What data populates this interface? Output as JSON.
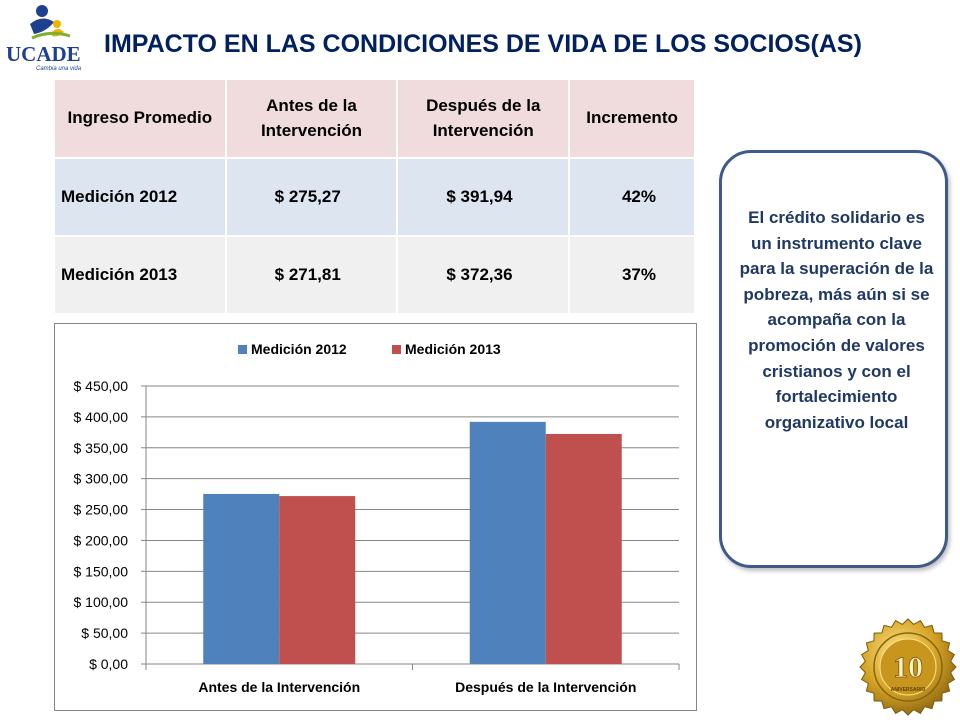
{
  "logo": {
    "name": "UCADE",
    "tagline": "Cambia una vida"
  },
  "title": "IMPACTO EN LAS CONDICIONES DE VIDA DE LOS SOCIOS(AS)",
  "table": {
    "headers": [
      "Ingreso Promedio",
      "Antes de la Intervención",
      "Después de la Intervención",
      "Incremento"
    ],
    "rows": [
      [
        "Medición 2012",
        "$ 275,27",
        "$ 391,94",
        "42%"
      ],
      [
        "Medición 2013",
        "$ 271,81",
        "$ 372,36",
        "37%"
      ]
    ]
  },
  "chart_data": {
    "type": "bar",
    "categories": [
      "Antes de la Intervención",
      "Después de la Intervención"
    ],
    "series": [
      {
        "name": "Medición 2012",
        "values": [
          275.27,
          391.94
        ],
        "color": "#4f81bd"
      },
      {
        "name": "Medición 2013",
        "values": [
          271.81,
          372.36
        ],
        "color": "#c0504d"
      }
    ],
    "ylim": [
      0,
      450
    ],
    "yticks": [
      "$ 0,00",
      "$ 50,00",
      "$ 100,00",
      "$ 150,00",
      "$ 200,00",
      "$ 250,00",
      "$ 300,00",
      "$ 350,00",
      "$ 400,00",
      "$ 450,00"
    ],
    "grid": true,
    "legend": "top"
  },
  "callout": {
    "text": "El crédito solidario es un instrumento clave para la superación de la pobreza, más aún si se acompaña con la promoción de valores cristianos y con el fortalecimiento organizativo local"
  },
  "seal": {
    "number": "10",
    "label": "ANIVERSARIO"
  },
  "colors": {
    "title": "#002060",
    "callout_border": "#3d5a8a",
    "header_bg": "#f0dcdc",
    "row1_bg": "#dde5f1",
    "row2_bg": "#f0f0f0"
  }
}
